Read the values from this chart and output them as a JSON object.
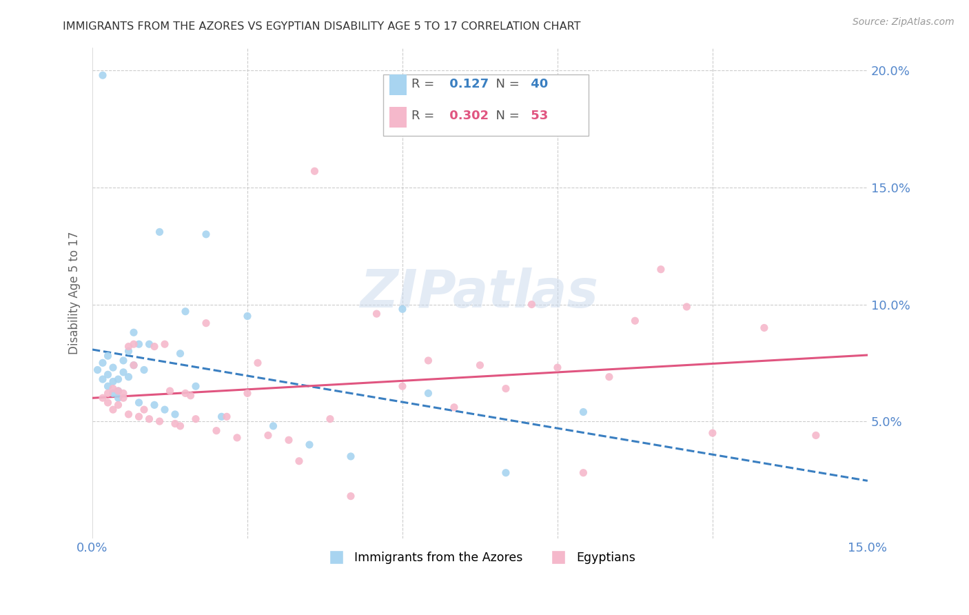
{
  "title": "IMMIGRANTS FROM THE AZORES VS EGYPTIAN DISABILITY AGE 5 TO 17 CORRELATION CHART",
  "source": "Source: ZipAtlas.com",
  "ylabel": "Disability Age 5 to 17",
  "xlim": [
    0.0,
    0.15
  ],
  "ylim": [
    0.0,
    0.21
  ],
  "yticks_right": [
    0.05,
    0.1,
    0.15,
    0.2
  ],
  "ytick_labels_right": [
    "5.0%",
    "10.0%",
    "15.0%",
    "20.0%"
  ],
  "blue_color": "#a8d4f0",
  "pink_color": "#f5b8cb",
  "blue_line_color": "#3a7fc1",
  "pink_line_color": "#e05580",
  "legend_R_blue": "0.127",
  "legend_N_blue": "40",
  "legend_R_pink": "0.302",
  "legend_N_pink": "53",
  "legend_label_blue": "Immigrants from the Azores",
  "legend_label_pink": "Egyptians",
  "watermark": "ZIPatlas",
  "blue_scatter_x": [
    0.001,
    0.002,
    0.002,
    0.003,
    0.003,
    0.003,
    0.004,
    0.004,
    0.004,
    0.005,
    0.005,
    0.005,
    0.006,
    0.006,
    0.007,
    0.007,
    0.008,
    0.008,
    0.009,
    0.009,
    0.01,
    0.011,
    0.012,
    0.013,
    0.014,
    0.016,
    0.017,
    0.018,
    0.02,
    0.022,
    0.025,
    0.03,
    0.035,
    0.042,
    0.05,
    0.06,
    0.065,
    0.08,
    0.095,
    0.002
  ],
  "blue_scatter_y": [
    0.072,
    0.068,
    0.075,
    0.065,
    0.07,
    0.078,
    0.062,
    0.067,
    0.073,
    0.063,
    0.068,
    0.06,
    0.071,
    0.076,
    0.08,
    0.069,
    0.074,
    0.088,
    0.058,
    0.083,
    0.072,
    0.083,
    0.057,
    0.131,
    0.055,
    0.053,
    0.079,
    0.097,
    0.065,
    0.13,
    0.052,
    0.095,
    0.048,
    0.04,
    0.035,
    0.098,
    0.062,
    0.028,
    0.054,
    0.198
  ],
  "pink_scatter_x": [
    0.002,
    0.003,
    0.003,
    0.004,
    0.004,
    0.005,
    0.005,
    0.006,
    0.006,
    0.007,
    0.007,
    0.008,
    0.008,
    0.009,
    0.01,
    0.011,
    0.012,
    0.013,
    0.014,
    0.015,
    0.016,
    0.017,
    0.018,
    0.019,
    0.02,
    0.022,
    0.024,
    0.026,
    0.028,
    0.03,
    0.032,
    0.034,
    0.038,
    0.04,
    0.043,
    0.046,
    0.05,
    0.055,
    0.06,
    0.065,
    0.07,
    0.075,
    0.08,
    0.085,
    0.09,
    0.095,
    0.1,
    0.105,
    0.11,
    0.115,
    0.12,
    0.13,
    0.14
  ],
  "pink_scatter_y": [
    0.06,
    0.062,
    0.058,
    0.055,
    0.064,
    0.057,
    0.063,
    0.062,
    0.06,
    0.082,
    0.053,
    0.074,
    0.083,
    0.052,
    0.055,
    0.051,
    0.082,
    0.05,
    0.083,
    0.063,
    0.049,
    0.048,
    0.062,
    0.061,
    0.051,
    0.092,
    0.046,
    0.052,
    0.043,
    0.062,
    0.075,
    0.044,
    0.042,
    0.033,
    0.157,
    0.051,
    0.018,
    0.096,
    0.065,
    0.076,
    0.056,
    0.074,
    0.064,
    0.1,
    0.073,
    0.028,
    0.069,
    0.093,
    0.115,
    0.099,
    0.045,
    0.09,
    0.044
  ]
}
